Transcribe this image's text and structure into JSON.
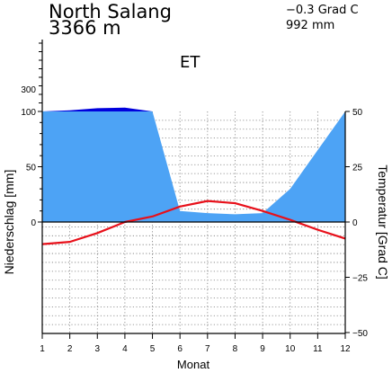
{
  "header": {
    "station_name": "North Salang",
    "elevation": "3366 m",
    "annual_temperature": "−0.3 Grad C",
    "annual_precipitation": "992 mm",
    "climate_class": "ET"
  },
  "chart_data": {
    "type": "area",
    "title": "",
    "xlabel": "Monat",
    "ylabel_left": "Niederschlag [mm]",
    "ylabel_right": "Temperatur [Grad C]",
    "x": [
      1,
      2,
      3,
      4,
      5,
      6,
      7,
      8,
      9,
      10,
      11,
      12
    ],
    "x_ticks": [
      "1",
      "2",
      "3",
      "4",
      "5",
      "6",
      "7",
      "8",
      "9",
      "10",
      "11",
      "12"
    ],
    "y_left_ticks": [
      "0",
      "50",
      "100",
      "300"
    ],
    "y_right_ticks": [
      "−50",
      "−25",
      "0",
      "25",
      "50"
    ],
    "precip_ylim": [
      0,
      100
    ],
    "precip_scale_above_100": "compressed (1:10)",
    "temp_ylim": [
      -50,
      50
    ],
    "grid": true,
    "series": [
      {
        "values": [
          100,
          104,
          112,
          114,
          100,
          10,
          8,
          7,
          8,
          30,
          65,
          100
        ],
        "color": "#1f96ff"
      },
      {
        "values": [
          -10,
          -9,
          -5,
          0,
          2.5,
          7,
          9.5,
          8.5,
          5,
          1,
          -3.5,
          -7.5
        ],
        "color": "#e8101a"
      }
    ],
    "colors": {
      "precip_fill": "#4da3f5",
      "humid_fill": "#0000dd",
      "temp_line": "#e8101a"
    }
  }
}
